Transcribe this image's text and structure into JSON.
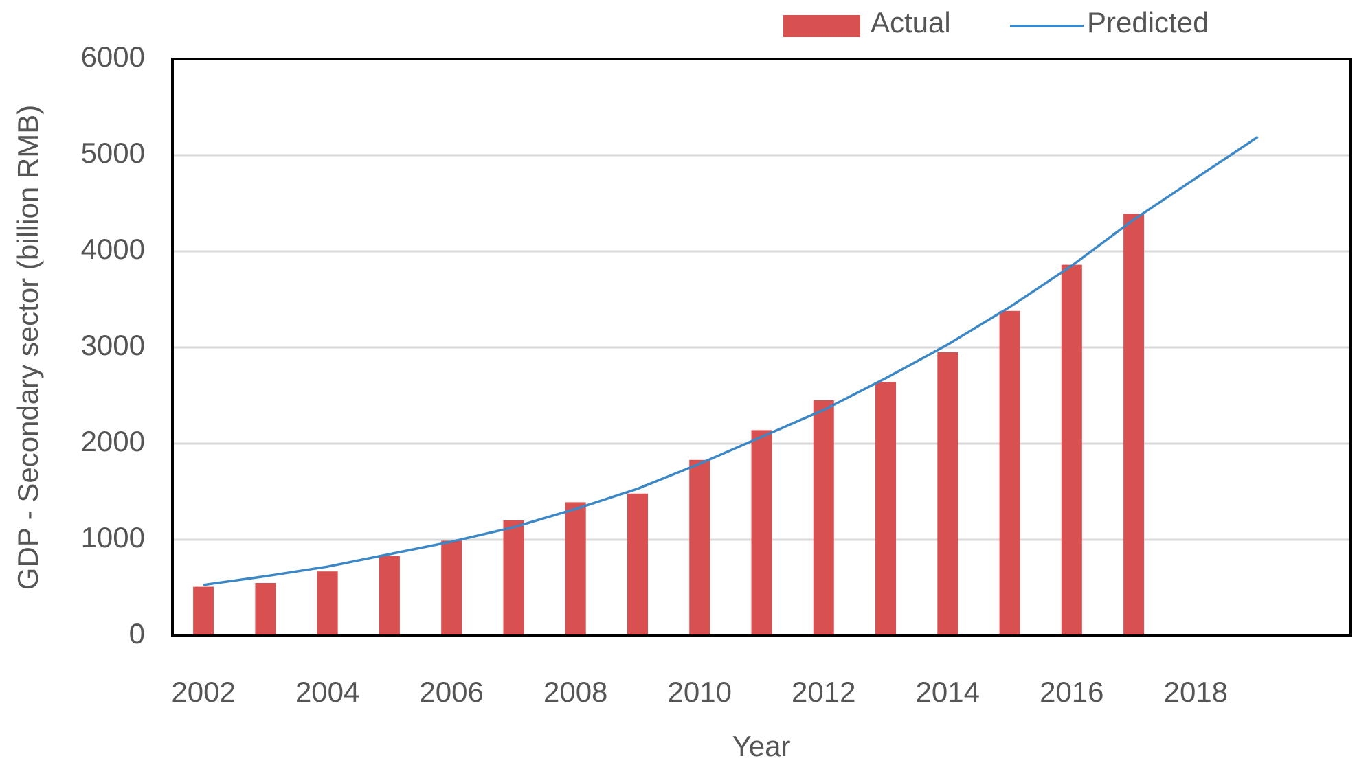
{
  "chart_data": {
    "type": "bar_line",
    "x_label": "Year",
    "y_label": "GDP - Secondary sector (billion RMB)",
    "categories": [
      "2002",
      null,
      "2004",
      null,
      "2006",
      null,
      "2008",
      null,
      "2010",
      null,
      "2012",
      null,
      "2014",
      null,
      "2016",
      null,
      "2018",
      null,
      null
    ],
    "series": [
      {
        "name": "Actual",
        "type": "bar",
        "color": "#d95050",
        "values": [
          510,
          550,
          670,
          830,
          990,
          1200,
          1390,
          1480,
          1830,
          2140,
          2450,
          2640,
          2950,
          3380,
          3860,
          4390,
          null,
          null,
          null
        ]
      },
      {
        "name": "Predicted",
        "type": "line",
        "color": "#3c87c6",
        "values": [
          530,
          620,
          720,
          850,
          980,
          1130,
          1320,
          1530,
          1790,
          2070,
          2350,
          2680,
          3030,
          3420,
          3850,
          4330,
          4760,
          5190,
          null
        ]
      }
    ],
    "ylim": [
      0,
      6000
    ],
    "yticks": [
      0,
      1000,
      2000,
      3000,
      4000,
      5000,
      6000
    ],
    "grid": true,
    "legend": "top"
  }
}
